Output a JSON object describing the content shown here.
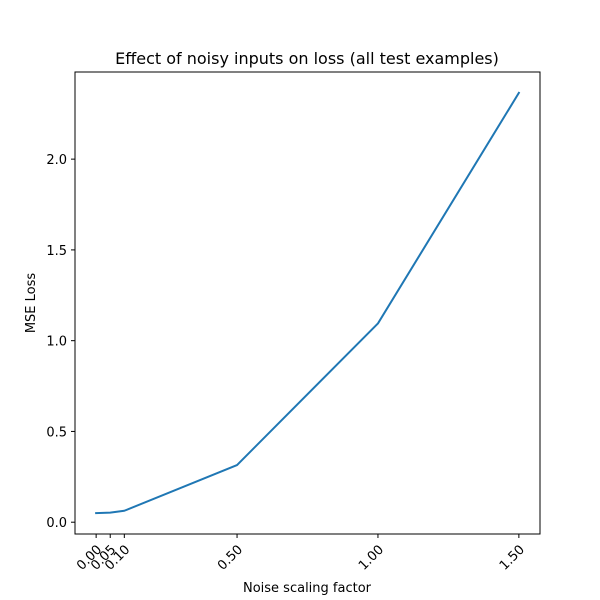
{
  "chart_data": {
    "type": "line",
    "title": "Effect of noisy inputs on loss (all test examples)",
    "xlabel": "Noise scaling factor",
    "ylabel": "MSE Loss",
    "x": [
      0.0,
      0.05,
      0.1,
      0.5,
      1.0,
      1.5
    ],
    "x_tick_labels": [
      "0.00",
      "0.05",
      "0.10",
      "0.50",
      "1.00",
      "1.50"
    ],
    "y_ticks": [
      0.0,
      0.5,
      1.0,
      1.5,
      2.0
    ],
    "y_tick_labels": [
      "0.0",
      "0.5",
      "1.0",
      "1.5",
      "2.0"
    ],
    "xlim": [
      -0.075,
      1.575
    ],
    "ylim": [
      -0.065,
      2.48
    ],
    "grid": false,
    "series": [
      {
        "name": "MSE Loss",
        "color": "#1f77b4",
        "values": [
          0.05,
          0.053,
          0.063,
          0.315,
          1.095,
          2.365
        ]
      }
    ]
  }
}
